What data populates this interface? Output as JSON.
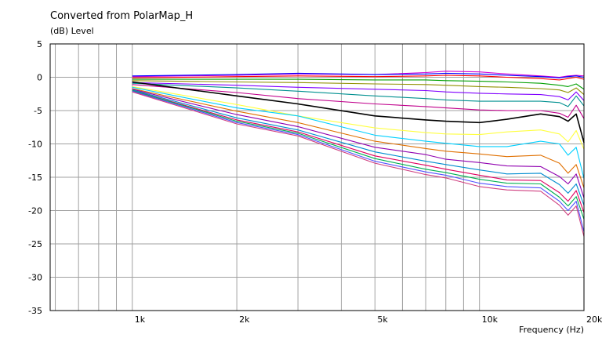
{
  "chart_data": {
    "type": "line",
    "title": "Converted from PolarMap_H",
    "ylabel": "(dB)  Level",
    "xlabel": "Frequency  (Hz)",
    "xscale": "log",
    "xlim": [
      580,
      20000
    ],
    "ylim": [
      -35,
      5
    ],
    "grid": true,
    "yticks": [
      5,
      0,
      -5,
      -10,
      -15,
      -20,
      -25,
      -30,
      -35
    ],
    "xticks": [
      {
        "value": 1000,
        "label": "1k"
      },
      {
        "value": 2000,
        "label": "2k"
      },
      {
        "value": 5000,
        "label": "5k"
      },
      {
        "value": 10000,
        "label": "10k"
      },
      {
        "value": 20000,
        "label": "20k"
      }
    ],
    "x": [
      1000,
      2000,
      3000,
      5000,
      7000,
      8000,
      10000,
      12000,
      15000,
      17000,
      18000,
      19000,
      20000
    ],
    "series": [
      {
        "color": "#d400d4",
        "values": [
          0.1,
          0.3,
          0.5,
          0.4,
          0.7,
          0.9,
          0.8,
          0.5,
          0.2,
          0.0,
          0.2,
          0.3,
          0.2
        ]
      },
      {
        "color": "#0000ff",
        "values": [
          0.2,
          0.4,
          0.6,
          0.4,
          0.5,
          0.6,
          0.5,
          0.3,
          0.1,
          -0.1,
          0.1,
          0.2,
          0.0
        ]
      },
      {
        "color": "#ff0000",
        "values": [
          -0.1,
          0.1,
          0.2,
          0.1,
          0.2,
          0.3,
          0.2,
          0.0,
          -0.2,
          -0.4,
          -0.2,
          0.0,
          -0.3
        ]
      },
      {
        "color": "#00a000",
        "values": [
          -0.3,
          -0.3,
          -0.3,
          -0.4,
          -0.4,
          -0.5,
          -0.6,
          -0.7,
          -0.9,
          -1.2,
          -1.4,
          -1.0,
          -1.8
        ]
      },
      {
        "color": "#909000",
        "values": [
          -0.5,
          -0.7,
          -0.8,
          -1.0,
          -1.1,
          -1.2,
          -1.4,
          -1.5,
          -1.7,
          -1.9,
          -2.3,
          -1.6,
          -2.6
        ]
      },
      {
        "color": "#8000ff",
        "values": [
          -0.8,
          -1.2,
          -1.5,
          -1.8,
          -2.0,
          -2.2,
          -2.4,
          -2.5,
          -2.6,
          -2.9,
          -3.4,
          -2.2,
          -3.5
        ]
      },
      {
        "color": "#009090",
        "values": [
          -0.9,
          -1.6,
          -2.1,
          -2.8,
          -3.2,
          -3.4,
          -3.6,
          -3.6,
          -3.6,
          -3.8,
          -4.4,
          -2.8,
          -4.3
        ]
      },
      {
        "color": "#c0008c",
        "values": [
          -1.1,
          -2.3,
          -3.2,
          -4.0,
          -4.4,
          -4.6,
          -4.9,
          -5.0,
          -5.0,
          -5.4,
          -6.0,
          -4.2,
          -6.2
        ]
      },
      {
        "color": "#000000",
        "values": [
          -0.7,
          -2.8,
          -4.0,
          -5.8,
          -6.4,
          -6.6,
          -6.8,
          -6.3,
          -5.5,
          -5.9,
          -6.6,
          -5.5,
          -9.8
        ]
      },
      {
        "color": "#ffff40",
        "values": [
          -1.4,
          -4.1,
          -5.8,
          -7.6,
          -8.3,
          -8.5,
          -8.6,
          -8.2,
          -7.9,
          -8.5,
          -9.7,
          -8.0,
          -10.8
        ]
      },
      {
        "color": "#00d0ff",
        "values": [
          -1.5,
          -4.6,
          -5.8,
          -8.7,
          -9.6,
          -9.9,
          -10.4,
          -10.4,
          -9.6,
          -10.0,
          -11.7,
          -10.5,
          -15.2
        ]
      },
      {
        "color": "#e07000",
        "values": [
          -1.7,
          -5.1,
          -6.8,
          -9.6,
          -10.7,
          -11.1,
          -11.5,
          -11.9,
          -11.7,
          -12.9,
          -14.4,
          -13.1,
          -16.6
        ]
      },
      {
        "color": "#9000b0",
        "values": [
          -1.8,
          -5.6,
          -7.4,
          -10.5,
          -11.6,
          -12.3,
          -12.8,
          -13.3,
          -13.4,
          -14.9,
          -16.0,
          -14.5,
          -18.1
        ]
      },
      {
        "color": "#008cd0",
        "values": [
          -1.9,
          -6.1,
          -7.9,
          -11.2,
          -12.6,
          -13.1,
          -13.9,
          -14.5,
          -14.4,
          -16.1,
          -17.4,
          -16.0,
          -19.2
        ]
      },
      {
        "color": "#e00060",
        "values": [
          -2.0,
          -6.4,
          -8.2,
          -11.8,
          -13.2,
          -13.8,
          -14.7,
          -15.4,
          -15.5,
          -17.3,
          -18.6,
          -17.0,
          -20.3
        ]
      },
      {
        "color": "#00b050",
        "values": [
          -2.0,
          -6.6,
          -8.4,
          -12.2,
          -13.8,
          -14.3,
          -15.3,
          -15.9,
          -16.0,
          -18.0,
          -19.3,
          -17.9,
          -21.3
        ]
      },
      {
        "color": "#5050ff",
        "values": [
          -2.1,
          -6.8,
          -8.6,
          -12.6,
          -14.2,
          -14.7,
          -15.9,
          -16.4,
          -16.6,
          -18.6,
          -20.0,
          -18.6,
          -23.2
        ]
      },
      {
        "color": "#d04080",
        "values": [
          -2.2,
          -7.0,
          -8.8,
          -12.9,
          -14.6,
          -15.1,
          -16.4,
          -16.9,
          -17.1,
          -19.2,
          -20.7,
          -19.3,
          -23.9
        ]
      }
    ]
  }
}
